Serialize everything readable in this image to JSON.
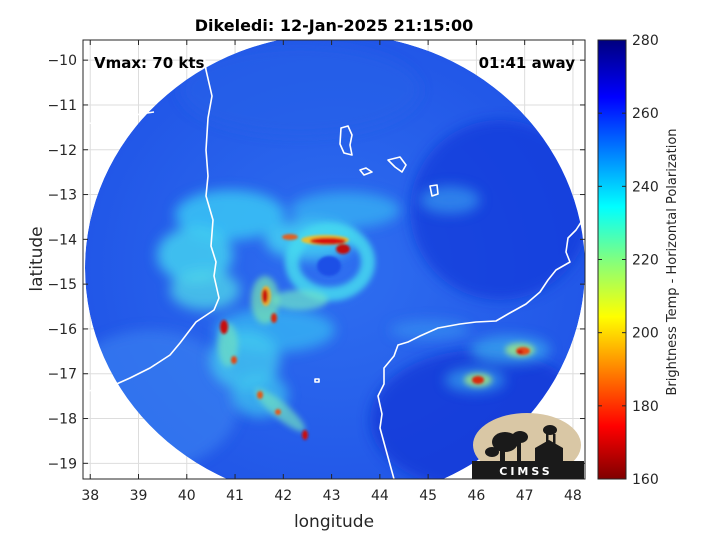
{
  "chart_data": {
    "type": "heatmap",
    "title": "Dikeledi: 12-Jan-2025 21:15:00",
    "xlabel": "longitude",
    "ylabel": "latitude",
    "xlim": [
      37.85,
      48.25
    ],
    "ylim": [
      -19.35,
      -9.55
    ],
    "x_ticks": [
      38,
      39,
      40,
      41,
      42,
      43,
      44,
      45,
      46,
      47,
      48
    ],
    "y_ticks": [
      -10,
      -11,
      -12,
      -13,
      -14,
      -15,
      -16,
      -17,
      -18,
      -19
    ],
    "grid": true,
    "annotations": {
      "vmax": "Vmax: 70 kts",
      "time_away": "01:41 away",
      "logo_text": "CIMSS"
    },
    "colorbar": {
      "label": "Brightness Temp - Horizontal Polarization",
      "range": [
        160,
        280
      ],
      "ticks": [
        160,
        180,
        200,
        220,
        240,
        260,
        280
      ],
      "colormap": "jet"
    },
    "storm_center": [
      43.0,
      -14.4
    ]
  },
  "colors": {
    "background_scan": "#2266ee",
    "coastline": "#ffffff",
    "frame": "#262626",
    "grid": "#dddddd"
  }
}
